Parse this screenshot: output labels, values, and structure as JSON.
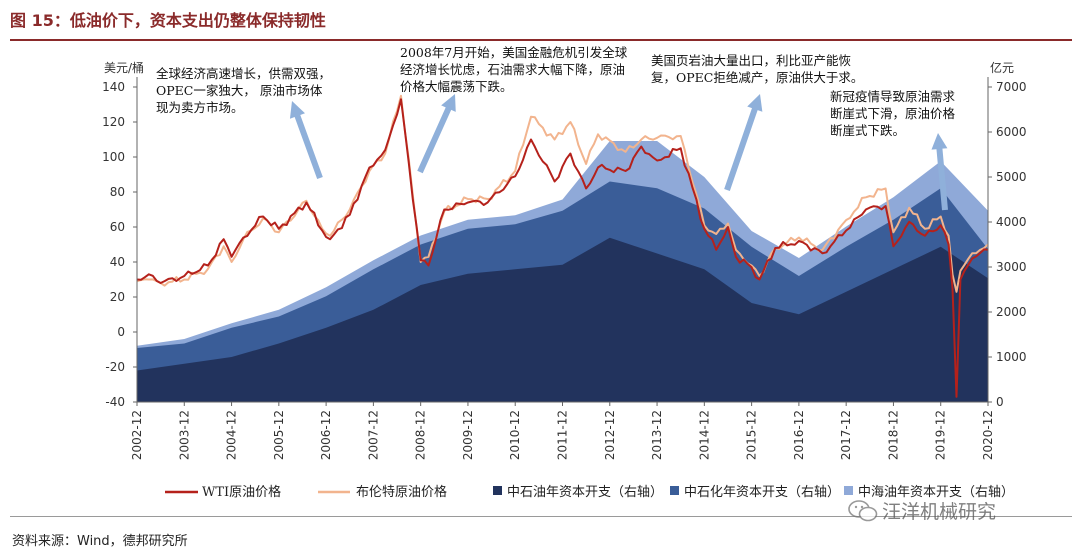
{
  "figure_title": "图 15：低油价下，资本支出仍整体保持韧性",
  "source_note": "资料来源：Wind，德邦研究所",
  "watermark": "汪洋机械研究",
  "colors": {
    "title": "#8a2a2a",
    "wti": "#b5211b",
    "brent": "#f2b48e",
    "cnpc": "#22335d",
    "sinopec": "#3a5d98",
    "cnooc": "#8fa9d8",
    "arrow": "#8fb0da"
  },
  "chart_data": {
    "type": "area+line",
    "left_axis": {
      "label": "美元/桶",
      "min": -40,
      "max": 140,
      "ticks": [
        -40,
        -20,
        0,
        20,
        40,
        60,
        80,
        100,
        120,
        140
      ]
    },
    "right_axis": {
      "label": "亿元",
      "min": 0,
      "max": 7000,
      "ticks": [
        0,
        1000,
        2000,
        3000,
        4000,
        5000,
        6000,
        7000
      ]
    },
    "x_ticks": [
      "2002-12",
      "2003-12",
      "2004-12",
      "2005-12",
      "2006-12",
      "2007-12",
      "2008-12",
      "2009-12",
      "2010-12",
      "2011-12",
      "2012-12",
      "2013-12",
      "2014-12",
      "2015-12",
      "2016-12",
      "2017-12",
      "2018-12",
      "2019-12",
      "2020-12"
    ],
    "capex_years": [
      2002,
      2003,
      2004,
      2005,
      2006,
      2007,
      2008,
      2009,
      2010,
      2011,
      2012,
      2013,
      2014,
      2015,
      2016,
      2017,
      2018,
      2019,
      2020
    ],
    "series": [
      {
        "name": "中石油年资本开支（右轴）",
        "axis": "right",
        "stack_top": [
          700,
          850,
          1000,
          1300,
          1650,
          2050,
          2600,
          2850,
          2950,
          3050,
          3650,
          3300,
          2950,
          2200,
          1950,
          2450,
          2950,
          3450,
          2750
        ]
      },
      {
        "name": "中石化年资本开支（右轴）",
        "axis": "right",
        "stack_top": [
          1200,
          1300,
          1650,
          1900,
          2350,
          2950,
          3500,
          3850,
          3950,
          4250,
          4900,
          4750,
          4300,
          3450,
          2800,
          3450,
          4050,
          4750,
          3400
        ]
      },
      {
        "name": "中海油年资本开支（右轴）",
        "axis": "right",
        "stack_top": [
          1250,
          1400,
          1750,
          2050,
          2550,
          3150,
          3700,
          4050,
          4150,
          4500,
          5800,
          5800,
          5000,
          3800,
          3200,
          3900,
          4550,
          5350,
          4250
        ]
      },
      {
        "name": "WTI原油价格",
        "axis": "left",
        "monthly_from": "2002-12",
        "anchors": [
          [
            "2002-12",
            30
          ],
          [
            "2003-03",
            33
          ],
          [
            "2003-06",
            28
          ],
          [
            "2003-12",
            32
          ],
          [
            "2004-06",
            38
          ],
          [
            "2004-10",
            53
          ],
          [
            "2004-12",
            43
          ],
          [
            "2005-03",
            54
          ],
          [
            "2005-08",
            66
          ],
          [
            "2005-12",
            59
          ],
          [
            "2006-07",
            74
          ],
          [
            "2006-11",
            58
          ],
          [
            "2007-01",
            53
          ],
          [
            "2007-06",
            67
          ],
          [
            "2007-11",
            94
          ],
          [
            "2008-03",
            104
          ],
          [
            "2008-07",
            133
          ],
          [
            "2008-12",
            41
          ],
          [
            "2009-02",
            38
          ],
          [
            "2009-06",
            70
          ],
          [
            "2009-12",
            74
          ],
          [
            "2010-05",
            74
          ],
          [
            "2010-12",
            89
          ],
          [
            "2011-04",
            110
          ],
          [
            "2011-10",
            86
          ],
          [
            "2012-02",
            102
          ],
          [
            "2012-06",
            82
          ],
          [
            "2012-09",
            94
          ],
          [
            "2013-04",
            92
          ],
          [
            "2013-08",
            106
          ],
          [
            "2013-12",
            98
          ],
          [
            "2014-06",
            105
          ],
          [
            "2014-12",
            59
          ],
          [
            "2015-03",
            47
          ],
          [
            "2015-06",
            60
          ],
          [
            "2015-08",
            43
          ],
          [
            "2015-12",
            37
          ],
          [
            "2016-02",
            30
          ],
          [
            "2016-06",
            48
          ],
          [
            "2016-12",
            52
          ],
          [
            "2017-06",
            45
          ],
          [
            "2017-12",
            58
          ],
          [
            "2018-05",
            70
          ],
          [
            "2018-10",
            72
          ],
          [
            "2018-12",
            49
          ],
          [
            "2019-04",
            63
          ],
          [
            "2019-08",
            55
          ],
          [
            "2019-12",
            61
          ],
          [
            "2020-02",
            50
          ],
          [
            "2020-03",
            25
          ],
          [
            "2020-04",
            -37
          ],
          [
            "2020-05",
            30
          ],
          [
            "2020-08",
            42
          ],
          [
            "2020-12",
            47
          ]
        ]
      },
      {
        "name": "布伦特原油价格",
        "axis": "left",
        "monthly_from": "2002-12",
        "anchors": [
          [
            "2002-12",
            29
          ],
          [
            "2003-03",
            30
          ],
          [
            "2003-06",
            28
          ],
          [
            "2003-12",
            30
          ],
          [
            "2004-06",
            36
          ],
          [
            "2004-10",
            49
          ],
          [
            "2004-12",
            40
          ],
          [
            "2005-03",
            53
          ],
          [
            "2005-08",
            65
          ],
          [
            "2005-12",
            57
          ],
          [
            "2006-07",
            75
          ],
          [
            "2006-11",
            59
          ],
          [
            "2007-01",
            55
          ],
          [
            "2007-06",
            70
          ],
          [
            "2007-11",
            92
          ],
          [
            "2008-03",
            102
          ],
          [
            "2008-07",
            135
          ],
          [
            "2008-12",
            40
          ],
          [
            "2009-02",
            43
          ],
          [
            "2009-06",
            69
          ],
          [
            "2009-12",
            76
          ],
          [
            "2010-05",
            76
          ],
          [
            "2010-12",
            92
          ],
          [
            "2011-04",
            123
          ],
          [
            "2011-10",
            110
          ],
          [
            "2012-02",
            120
          ],
          [
            "2012-06",
            96
          ],
          [
            "2012-09",
            113
          ],
          [
            "2013-04",
            103
          ],
          [
            "2013-08",
            110
          ],
          [
            "2013-12",
            111
          ],
          [
            "2014-06",
            112
          ],
          [
            "2014-12",
            61
          ],
          [
            "2015-03",
            56
          ],
          [
            "2015-06",
            62
          ],
          [
            "2015-08",
            47
          ],
          [
            "2015-12",
            38
          ],
          [
            "2016-02",
            32
          ],
          [
            "2016-06",
            48
          ],
          [
            "2016-12",
            54
          ],
          [
            "2017-06",
            47
          ],
          [
            "2017-12",
            64
          ],
          [
            "2018-05",
            77
          ],
          [
            "2018-10",
            82
          ],
          [
            "2018-12",
            57
          ],
          [
            "2019-04",
            71
          ],
          [
            "2019-08",
            59
          ],
          [
            "2019-12",
            66
          ],
          [
            "2020-02",
            55
          ],
          [
            "2020-03",
            33
          ],
          [
            "2020-04",
            23
          ],
          [
            "2020-05",
            35
          ],
          [
            "2020-08",
            45
          ],
          [
            "2020-12",
            50
          ]
        ]
      }
    ],
    "annotations": [
      {
        "lines": [
          "全球经济高速增长，供需双强，",
          "OPEC一家独大， 原油市场体",
          "现为卖方市场。"
        ]
      },
      {
        "lines": [
          "2008年7月开始，美国金融危机引发全球",
          "经济增长忧虑，石油需求大幅下降，原油",
          "价格大幅震荡下跌。"
        ]
      },
      {
        "lines": [
          "美国页岩油大量出口，利比亚产能恢",
          "复，OPEC拒绝减产，原油供大于求。"
        ]
      },
      {
        "lines": [
          "新冠疫情导致原油需求",
          "断崖式下滑，原油价格",
          "断崖式下跌。"
        ]
      }
    ],
    "legend": [
      "WTI原油价格",
      "布伦特原油价格",
      "中石油年资本开支（右轴）",
      "中石化年资本开支（右轴）",
      "中海油年资本开支（右轴）"
    ]
  }
}
